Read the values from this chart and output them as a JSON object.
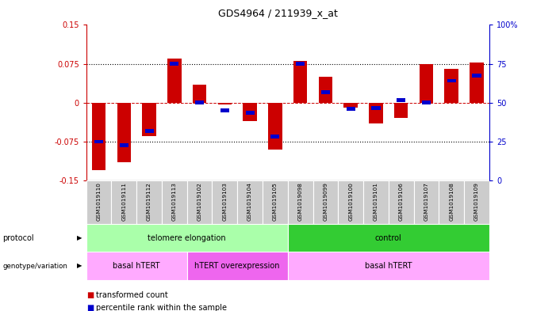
{
  "title": "GDS4964 / 211939_x_at",
  "samples": [
    "GSM1019110",
    "GSM1019111",
    "GSM1019112",
    "GSM1019113",
    "GSM1019102",
    "GSM1019103",
    "GSM1019104",
    "GSM1019105",
    "GSM1019098",
    "GSM1019099",
    "GSM1019100",
    "GSM1019101",
    "GSM1019106",
    "GSM1019107",
    "GSM1019108",
    "GSM1019109"
  ],
  "red_values": [
    -0.13,
    -0.115,
    -0.065,
    0.085,
    0.035,
    -0.003,
    -0.035,
    -0.09,
    0.08,
    0.05,
    -0.01,
    -0.04,
    -0.03,
    0.075,
    0.065,
    0.078
  ],
  "blue_values": [
    -0.075,
    -0.082,
    -0.055,
    0.075,
    0.0,
    -0.015,
    -0.02,
    -0.065,
    0.075,
    0.02,
    -0.012,
    -0.01,
    0.005,
    0.0,
    0.042,
    0.052
  ],
  "ylim": [
    -0.15,
    0.15
  ],
  "yticks_left": [
    -0.15,
    -0.075,
    0,
    0.075,
    0.15
  ],
  "yticks_left_labels": [
    "-0.15",
    "-0.075",
    "0",
    "0.075",
    "0.15"
  ],
  "yticks_right": [
    0,
    25,
    50,
    75,
    100
  ],
  "yticks_right_labels": [
    "0",
    "25",
    "50",
    "75",
    "100%"
  ],
  "hline_dotted": [
    -0.075,
    0.075
  ],
  "red_color": "#cc0000",
  "blue_color": "#0000cc",
  "protocol_labels": [
    {
      "text": "telomere elongation",
      "start": 0,
      "end": 7,
      "color": "#aaffaa"
    },
    {
      "text": "control",
      "start": 8,
      "end": 15,
      "color": "#33cc33"
    }
  ],
  "genotype_labels": [
    {
      "text": "basal hTERT",
      "start": 0,
      "end": 3,
      "color": "#ffaaff"
    },
    {
      "text": "hTERT overexpression",
      "start": 4,
      "end": 7,
      "color": "#ee66ee"
    },
    {
      "text": "basal hTERT",
      "start": 8,
      "end": 15,
      "color": "#ffaaff"
    }
  ],
  "legend_red": "transformed count",
  "legend_blue": "percentile rank within the sample",
  "left_color": "#cc0000",
  "right_color": "#0000cc"
}
